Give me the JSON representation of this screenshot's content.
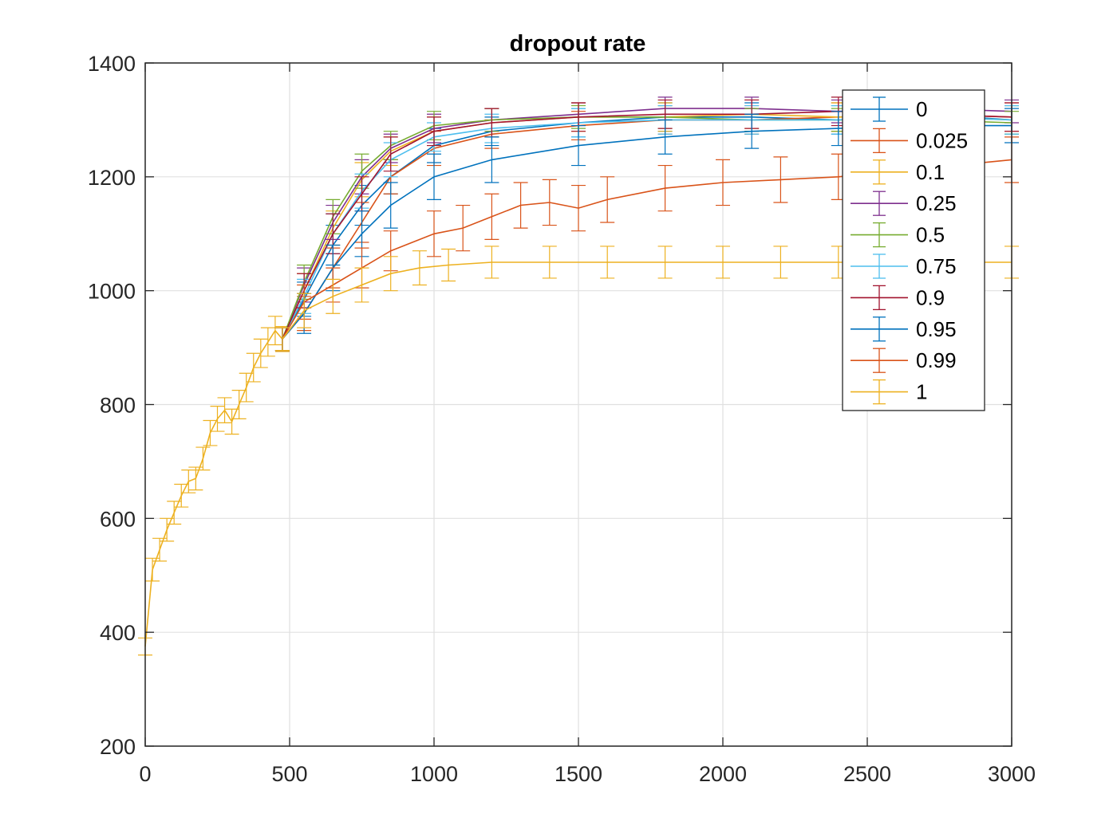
{
  "chart_data": {
    "type": "line",
    "title": "dropout rate",
    "xlabel": "",
    "ylabel": "",
    "xlim": [
      0,
      3000
    ],
    "ylim": [
      200,
      1400
    ],
    "xticks": [
      0,
      500,
      1000,
      1500,
      2000,
      2500,
      3000
    ],
    "yticks": [
      200,
      400,
      600,
      800,
      1000,
      1200,
      1400
    ],
    "grid": true,
    "error_bars": true,
    "legend_position": "top-right",
    "initial_segment": {
      "note_color_series": "1",
      "x": [
        0,
        25,
        50,
        75,
        100,
        125,
        150,
        175,
        200,
        225,
        250,
        275,
        300,
        325,
        350,
        375,
        400,
        425,
        450,
        475
      ],
      "y": [
        375,
        510,
        545,
        580,
        610,
        640,
        665,
        670,
        705,
        750,
        775,
        790,
        770,
        800,
        830,
        865,
        890,
        910,
        930,
        915
      ],
      "err": [
        15,
        20,
        20,
        20,
        20,
        20,
        20,
        20,
        20,
        22,
        22,
        22,
        22,
        25,
        25,
        25,
        25,
        25,
        25,
        22
      ]
    },
    "series": [
      {
        "name": "0",
        "color": "#0072BD",
        "x": [
          475,
          550,
          650,
          750,
          850,
          1000,
          1200,
          1500,
          1800,
          2100,
          2400,
          2700,
          3000
        ],
        "y": [
          915,
          985,
          1080,
          1150,
          1200,
          1255,
          1280,
          1295,
          1305,
          1305,
          1300,
          1310,
          1300
        ],
        "err": [
          20,
          30,
          35,
          35,
          30,
          30,
          25,
          25,
          25,
          25,
          25,
          25,
          25
        ]
      },
      {
        "name": "0.025",
        "color": "#D95319",
        "x": [
          475,
          550,
          650,
          750,
          850,
          1000,
          1200,
          1500,
          1800,
          2100,
          2400,
          2700,
          3000
        ],
        "y": [
          915,
          960,
          1040,
          1120,
          1200,
          1250,
          1275,
          1290,
          1300,
          1300,
          1305,
          1310,
          1305
        ],
        "err": [
          20,
          30,
          35,
          35,
          30,
          30,
          25,
          25,
          25,
          25,
          25,
          25,
          25
        ]
      },
      {
        "name": "0.1",
        "color": "#EDB120",
        "x": [
          475,
          550,
          650,
          750,
          850,
          1000,
          1200,
          1500,
          1800,
          2100,
          2400,
          2700,
          3000
        ],
        "y": [
          915,
          1000,
          1110,
          1195,
          1245,
          1280,
          1295,
          1305,
          1305,
          1310,
          1305,
          1305,
          1300
        ],
        "err": [
          20,
          30,
          30,
          30,
          25,
          25,
          25,
          25,
          25,
          25,
          25,
          25,
          25
        ]
      },
      {
        "name": "0.25",
        "color": "#7E2F8E",
        "x": [
          475,
          550,
          650,
          750,
          850,
          1000,
          1200,
          1500,
          1800,
          2100,
          2400,
          2700,
          3000
        ],
        "y": [
          915,
          1010,
          1120,
          1200,
          1250,
          1285,
          1300,
          1310,
          1320,
          1320,
          1315,
          1320,
          1315
        ],
        "err": [
          20,
          30,
          30,
          30,
          25,
          25,
          20,
          20,
          20,
          20,
          20,
          20,
          20
        ]
      },
      {
        "name": "0.5",
        "color": "#77AC30",
        "x": [
          475,
          550,
          650,
          750,
          850,
          1000,
          1200,
          1500,
          1800,
          2100,
          2400,
          2700,
          3000
        ],
        "y": [
          915,
          1015,
          1130,
          1210,
          1255,
          1290,
          1300,
          1305,
          1305,
          1300,
          1300,
          1300,
          1295
        ],
        "err": [
          20,
          30,
          30,
          30,
          25,
          25,
          20,
          20,
          20,
          20,
          20,
          20,
          20
        ]
      },
      {
        "name": "0.75",
        "color": "#4DBEEE",
        "x": [
          475,
          550,
          650,
          750,
          850,
          1000,
          1200,
          1500,
          1800,
          2100,
          2400,
          2700,
          3000
        ],
        "y": [
          915,
          990,
          1100,
          1175,
          1230,
          1270,
          1285,
          1295,
          1300,
          1300,
          1300,
          1305,
          1300
        ],
        "err": [
          20,
          30,
          35,
          30,
          30,
          25,
          25,
          25,
          25,
          25,
          25,
          25,
          25
        ]
      },
      {
        "name": "0.9",
        "color": "#A2142F",
        "x": [
          475,
          550,
          650,
          750,
          850,
          1000,
          1200,
          1500,
          1800,
          2100,
          2400,
          2700,
          3000
        ],
        "y": [
          915,
          1000,
          1100,
          1170,
          1240,
          1280,
          1295,
          1305,
          1310,
          1310,
          1315,
          1310,
          1305
        ],
        "err": [
          20,
          30,
          35,
          30,
          30,
          25,
          25,
          25,
          25,
          25,
          25,
          25,
          25
        ]
      },
      {
        "name": "0.95",
        "color": "#0072BD",
        "x": [
          475,
          550,
          650,
          750,
          850,
          1000,
          1200,
          1500,
          1800,
          2100,
          2400,
          2700,
          3000
        ],
        "y": [
          915,
          960,
          1040,
          1100,
          1150,
          1200,
          1230,
          1255,
          1270,
          1280,
          1285,
          1290,
          1290
        ],
        "err": [
          20,
          35,
          40,
          40,
          40,
          40,
          40,
          35,
          30,
          30,
          30,
          30,
          30
        ]
      },
      {
        "name": "0.99",
        "color": "#D95319",
        "x": [
          475,
          550,
          650,
          750,
          850,
          1000,
          1100,
          1200,
          1300,
          1400,
          1500,
          1600,
          1800,
          2000,
          2200,
          2400,
          2600,
          2800,
          3000
        ],
        "y": [
          915,
          980,
          1010,
          1040,
          1070,
          1100,
          1110,
          1130,
          1150,
          1155,
          1145,
          1160,
          1180,
          1190,
          1195,
          1200,
          1210,
          1220,
          1230
        ],
        "err": [
          20,
          30,
          30,
          35,
          35,
          40,
          40,
          40,
          40,
          40,
          40,
          40,
          40,
          40,
          40,
          40,
          40,
          40,
          40
        ]
      },
      {
        "name": "1",
        "color": "#EDB120",
        "x": [
          475,
          550,
          650,
          750,
          850,
          950,
          1050,
          1200,
          1400,
          1600,
          1800,
          2000,
          2200,
          2400,
          2600,
          2800,
          3000
        ],
        "y": [
          915,
          965,
          990,
          1010,
          1030,
          1040,
          1045,
          1050,
          1050,
          1050,
          1050,
          1050,
          1050,
          1050,
          1050,
          1050,
          1050
        ],
        "err": [
          20,
          30,
          30,
          30,
          30,
          30,
          28,
          28,
          28,
          28,
          28,
          28,
          28,
          28,
          28,
          28,
          28
        ]
      }
    ]
  }
}
